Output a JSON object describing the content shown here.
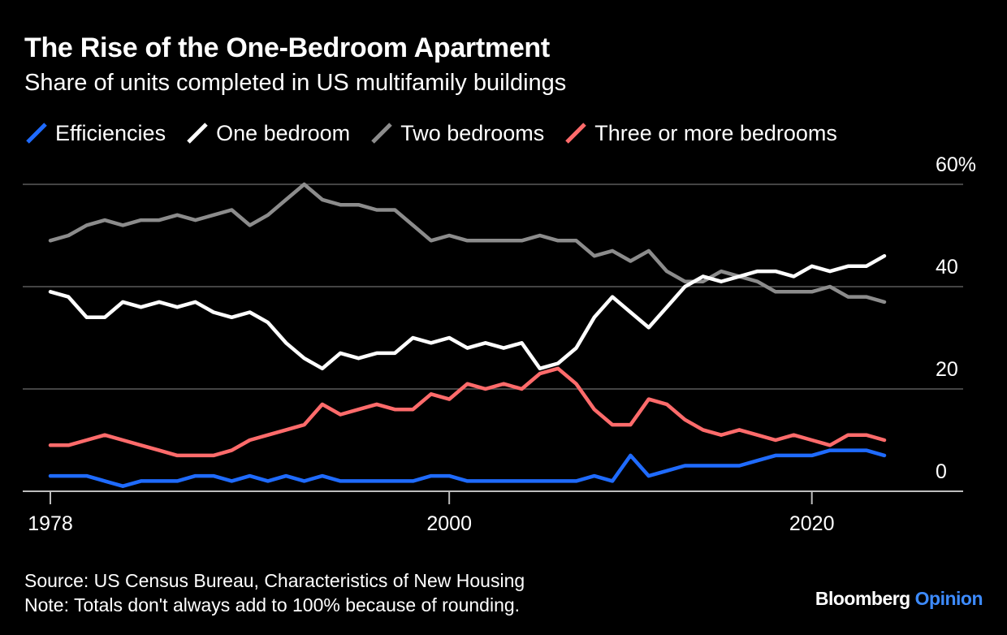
{
  "header": {
    "title": "The Rise of the One-Bedroom Apartment",
    "subtitle": "Share of units completed in US multifamily buildings"
  },
  "footer": {
    "source": "Source: US Census Bureau, Characteristics of New Housing",
    "note": "Note: Totals don't always add to 100% because of rounding."
  },
  "brand": {
    "name": "Bloomberg",
    "accent": "Opinion",
    "accent_color": "#3d8bff"
  },
  "chart_data": {
    "type": "line",
    "x": [
      1978,
      1979,
      1980,
      1981,
      1982,
      1983,
      1984,
      1985,
      1986,
      1987,
      1988,
      1989,
      1990,
      1991,
      1992,
      1993,
      1994,
      1995,
      1996,
      1997,
      1998,
      1999,
      2000,
      2001,
      2002,
      2003,
      2004,
      2005,
      2006,
      2007,
      2008,
      2009,
      2010,
      2011,
      2012,
      2013,
      2014,
      2015,
      2016,
      2017,
      2018,
      2019,
      2020,
      2021,
      2022,
      2023,
      2024
    ],
    "series": [
      {
        "name": "Efficiencies",
        "color": "#1f6bff",
        "values": [
          3,
          3,
          3,
          2,
          1,
          2,
          2,
          2,
          3,
          3,
          2,
          3,
          2,
          3,
          2,
          3,
          2,
          2,
          2,
          2,
          2,
          3,
          3,
          2,
          2,
          2,
          2,
          2,
          2,
          2,
          3,
          2,
          7,
          3,
          4,
          5,
          5,
          5,
          5,
          6,
          7,
          7,
          7,
          8,
          8,
          8,
          7
        ]
      },
      {
        "name": "One bedroom",
        "color": "#ffffff",
        "values": [
          39,
          38,
          34,
          34,
          37,
          36,
          37,
          36,
          37,
          35,
          34,
          35,
          33,
          29,
          26,
          24,
          27,
          26,
          27,
          27,
          30,
          29,
          30,
          28,
          29,
          28,
          29,
          24,
          25,
          28,
          34,
          38,
          35,
          32,
          36,
          40,
          42,
          41,
          42,
          43,
          43,
          42,
          44,
          43,
          44,
          44,
          46
        ]
      },
      {
        "name": "Two bedrooms",
        "color": "#8c8c8c",
        "values": [
          49,
          50,
          52,
          53,
          52,
          53,
          53,
          54,
          53,
          54,
          55,
          52,
          54,
          57,
          60,
          57,
          56,
          56,
          55,
          55,
          52,
          49,
          50,
          49,
          49,
          49,
          49,
          50,
          49,
          49,
          46,
          47,
          45,
          47,
          43,
          41,
          41,
          43,
          42,
          41,
          39,
          39,
          39,
          40,
          38,
          38,
          37
        ]
      },
      {
        "name": "Three or more bedrooms",
        "color": "#ff6b6b",
        "values": [
          9,
          9,
          10,
          11,
          10,
          9,
          8,
          7,
          7,
          7,
          8,
          10,
          11,
          12,
          13,
          17,
          15,
          16,
          17,
          16,
          16,
          19,
          18,
          21,
          20,
          21,
          20,
          23,
          24,
          21,
          16,
          13,
          13,
          18,
          17,
          14,
          12,
          11,
          12,
          11,
          10,
          11,
          10,
          9,
          11,
          11,
          10
        ]
      }
    ],
    "x_ticks": [
      "1978",
      "2000",
      "2020"
    ],
    "y_ticks": [
      "0",
      "20",
      "40",
      "60%"
    ],
    "y_tick_values": [
      0,
      20,
      40,
      60
    ],
    "xlim": [
      1978,
      2024
    ],
    "ylim": [
      0,
      60
    ],
    "grid": true,
    "y_axis_position": "right",
    "legend_position": "top-left"
  }
}
